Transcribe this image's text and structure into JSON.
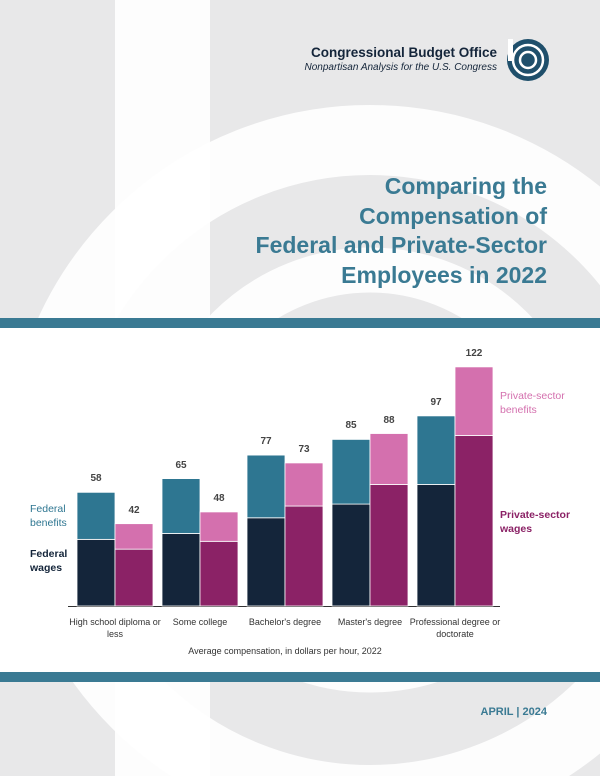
{
  "header": {
    "organization": "Congressional Budget Office",
    "tagline": "Nonpartisan Analysis for the U.S. Congress"
  },
  "title": [
    "Comparing the",
    "Compensation of",
    "Federal and Private-Sector",
    "Employees in 2022"
  ],
  "chart_data": {
    "type": "stacked-bar",
    "categories": [
      "High school diploma or less",
      "Some college",
      "Bachelor's degree",
      "Master's degree",
      "Professional degree or doctorate"
    ],
    "x_label": "Average compensation, in dollars per hour, 2022",
    "stacks": [
      {
        "totals": [
          58,
          65,
          77,
          85,
          97
        ],
        "series": [
          {
            "name": "Federal wages",
            "color": "#14253a",
            "values": [
              34,
              37,
              45,
              52,
              62
            ]
          },
          {
            "name": "Federal benefits",
            "color": "#2e7691",
            "values": [
              24,
              28,
              32,
              33,
              35
            ]
          }
        ]
      },
      {
        "totals": [
          42,
          48,
          73,
          88,
          122
        ],
        "series": [
          {
            "name": "Private-sector wages",
            "color": "#8b2266",
            "values": [
              29,
              33,
              51,
              62,
              87
            ]
          },
          {
            "name": "Private-sector benefits",
            "color": "#d470ae",
            "values": [
              13,
              15,
              22,
              26,
              35
            ]
          }
        ]
      }
    ]
  },
  "footer": {
    "date": "APRIL | 2024"
  }
}
